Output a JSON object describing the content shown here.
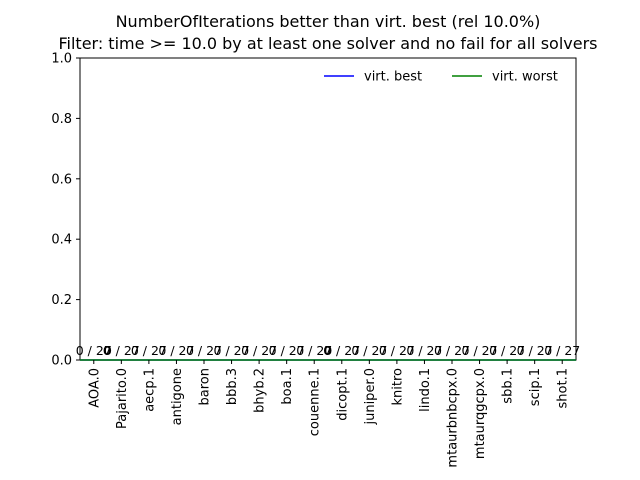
{
  "chart_data": {
    "type": "bar",
    "title": "NumberOfIterations better than virt. best (rel 10.0%)",
    "subtitle": "Filter: time >= 10.0 by at least one solver and no fail for all solvers",
    "xlabel": "",
    "ylabel": "",
    "ylim": [
      0,
      1.0
    ],
    "yticks": [
      "0.0",
      "0.2",
      "0.4",
      "0.6",
      "0.8",
      "1.0"
    ],
    "categories": [
      "AOA.0",
      "Pajarito.0",
      "aecp.1",
      "antigone",
      "baron",
      "bbb.3",
      "bhyb.2",
      "boa.1",
      "couenne.1",
      "dicopt.1",
      "juniper.0",
      "knitro",
      "lindo.1",
      "mtaurbnbcpx.0",
      "mtaurqgcpx.0",
      "sbb.1",
      "scip.1",
      "shot.1"
    ],
    "values": [
      0,
      0,
      0,
      0,
      0,
      0,
      0,
      0,
      0,
      0,
      0,
      0,
      0,
      0,
      0,
      0,
      0,
      0
    ],
    "bar_labels": [
      {
        "num": "0",
        "sep": " / ",
        "den": "27",
        "num_bold": false
      },
      {
        "num": "0",
        "sep": " / ",
        "den": "27",
        "num_bold": true
      },
      {
        "num": "0",
        "sep": " / ",
        "den": "27",
        "num_bold": false
      },
      {
        "num": "0",
        "sep": " / ",
        "den": "27",
        "num_bold": false
      },
      {
        "num": "0",
        "sep": " / ",
        "den": "27",
        "num_bold": false
      },
      {
        "num": "0",
        "sep": " / ",
        "den": "27",
        "num_bold": false
      },
      {
        "num": "0",
        "sep": " / ",
        "den": "27",
        "num_bold": false
      },
      {
        "num": "0",
        "sep": " / ",
        "den": "27",
        "num_bold": false
      },
      {
        "num": "0",
        "sep": " / ",
        "den": "27",
        "num_bold": false
      },
      {
        "num": "0",
        "sep": " / ",
        "den": "27",
        "num_bold": true
      },
      {
        "num": "0",
        "sep": " / ",
        "den": "27",
        "num_bold": false
      },
      {
        "num": "0",
        "sep": " / ",
        "den": "27",
        "num_bold": false
      },
      {
        "num": "0",
        "sep": " / ",
        "den": "27",
        "num_bold": false
      },
      {
        "num": "0",
        "sep": " / ",
        "den": "27",
        "num_bold": false
      },
      {
        "num": "0",
        "sep": " / ",
        "den": "27",
        "num_bold": false
      },
      {
        "num": "0",
        "sep": " / ",
        "den": "27",
        "num_bold": false
      },
      {
        "num": "0",
        "sep": " / ",
        "den": "27",
        "num_bold": false
      },
      {
        "num": "0",
        "sep": " / ",
        "den": "27",
        "num_bold": false
      }
    ],
    "lines": [
      {
        "name": "virt. best",
        "color": "#0000ff",
        "y": 0
      },
      {
        "name": "virt. worst",
        "color": "#008000",
        "y": 0
      }
    ],
    "legend": "top-right",
    "grid": false
  }
}
